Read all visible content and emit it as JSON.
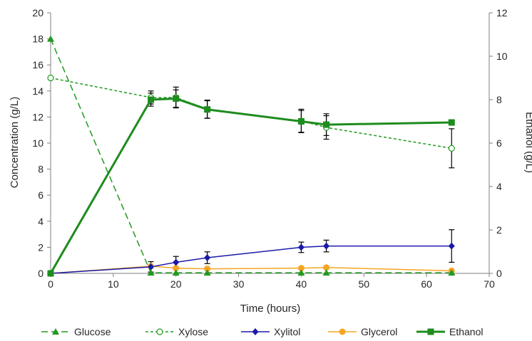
{
  "chart_data": {
    "type": "line",
    "xlabel": "Time (hours)",
    "ylabel": "Concentration (g/L)",
    "y2label": "Ethanol (g/L)",
    "xlim": [
      0,
      70
    ],
    "ylim": [
      0,
      20
    ],
    "y2lim": [
      0,
      12
    ],
    "xticks": [
      "0",
      "10",
      "20",
      "30",
      "40",
      "50",
      "60",
      "70"
    ],
    "yticks": [
      "0",
      "2",
      "4",
      "6",
      "8",
      "10",
      "12",
      "14",
      "16",
      "18",
      "20"
    ],
    "y2ticks": [
      "0",
      "2",
      "4",
      "6",
      "8",
      "10",
      "12"
    ],
    "grid": false,
    "legend_position": "bottom",
    "series": [
      {
        "name": "Glucose",
        "axis": "left",
        "color": "#1f9a1f",
        "dash": "long-dash",
        "marker": "triangle",
        "x": [
          0,
          16,
          20,
          25,
          40,
          44,
          64
        ],
        "y": [
          18,
          0.05,
          0.05,
          0.05,
          0.05,
          0.05,
          0.05
        ],
        "err": [
          0,
          0,
          0,
          0,
          0,
          0,
          0
        ]
      },
      {
        "name": "Xylose",
        "axis": "left",
        "color": "#1f9a1f",
        "dash": "short-dash",
        "marker": "open-circle",
        "x": [
          0,
          16,
          20,
          25,
          40,
          44,
          64
        ],
        "y": [
          15.0,
          13.5,
          13.5,
          12.6,
          11.7,
          11.2,
          9.6
        ],
        "err": [
          0,
          0.5,
          0.8,
          0.7,
          0.9,
          0.9,
          1.5
        ]
      },
      {
        "name": "Xylitol",
        "axis": "left",
        "color": "#1a1aa8",
        "dash": "solid",
        "marker": "diamond",
        "x": [
          0,
          16,
          20,
          25,
          40,
          44,
          64
        ],
        "y": [
          0,
          0.5,
          0.85,
          1.2,
          2.0,
          2.1,
          2.1
        ],
        "err": [
          0,
          0.4,
          0.45,
          0.45,
          0.4,
          0.45,
          1.25
        ]
      },
      {
        "name": "Glycerol",
        "axis": "left",
        "color": "#f5a623",
        "dash": "solid",
        "marker": "circle",
        "x": [
          0,
          16,
          20,
          25,
          40,
          44,
          64
        ],
        "y": [
          0,
          0.55,
          0.4,
          0.35,
          0.4,
          0.45,
          0.2
        ],
        "err": [
          0,
          0,
          0,
          0,
          0,
          0,
          0
        ]
      },
      {
        "name": "Ethanol",
        "axis": "right",
        "color": "#1e8c1e",
        "dash": "solid",
        "marker": "square",
        "x": [
          0,
          16,
          20,
          25,
          40,
          44,
          64
        ],
        "y": [
          0,
          8.0,
          8.05,
          7.55,
          7.0,
          6.85,
          6.95
        ],
        "err": [
          0,
          0.3,
          0.4,
          0.4,
          0.5,
          0.5,
          0
        ]
      }
    ]
  }
}
